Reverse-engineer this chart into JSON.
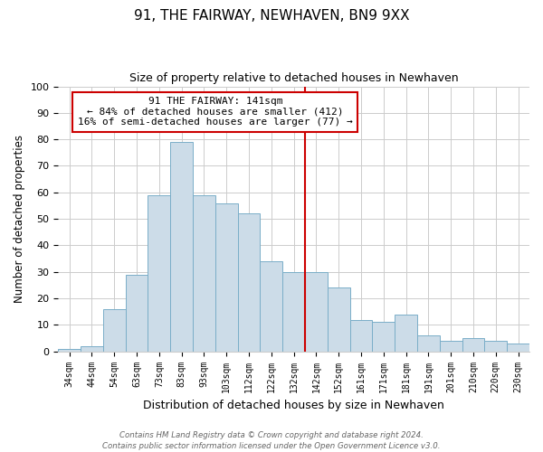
{
  "title": "91, THE FAIRWAY, NEWHAVEN, BN9 9XX",
  "subtitle": "Size of property relative to detached houses in Newhaven",
  "xlabel": "Distribution of detached houses by size in Newhaven",
  "ylabel": "Number of detached properties",
  "bin_labels": [
    "34sqm",
    "44sqm",
    "54sqm",
    "63sqm",
    "73sqm",
    "83sqm",
    "93sqm",
    "103sqm",
    "112sqm",
    "122sqm",
    "132sqm",
    "142sqm",
    "152sqm",
    "161sqm",
    "171sqm",
    "181sqm",
    "191sqm",
    "201sqm",
    "210sqm",
    "220sqm",
    "230sqm"
  ],
  "bar_heights": [
    1,
    2,
    16,
    29,
    59,
    79,
    59,
    56,
    52,
    34,
    30,
    30,
    24,
    12,
    11,
    14,
    6,
    4,
    5,
    4,
    3
  ],
  "bar_color": "#ccdce8",
  "bar_edge_color": "#7aaec8",
  "vline_label_idx": 11,
  "vline_color": "#cc0000",
  "annotation_title": "91 THE FAIRWAY: 141sqm",
  "annotation_line1": "← 84% of detached houses are smaller (412)",
  "annotation_line2": "16% of semi-detached houses are larger (77) →",
  "annotation_box_color": "#ffffff",
  "annotation_box_edge": "#cc0000",
  "ylim": [
    0,
    100
  ],
  "footnote1": "Contains HM Land Registry data © Crown copyright and database right 2024.",
  "footnote2": "Contains public sector information licensed under the Open Government Licence v3.0."
}
